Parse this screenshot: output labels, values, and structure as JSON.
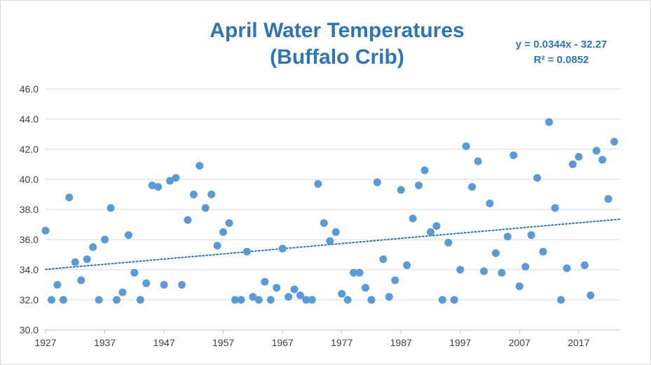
{
  "chart_data": {
    "type": "scatter",
    "title": "April Water Temperatures",
    "subtitle": "(Buffalo Crib)",
    "xlabel": "",
    "ylabel": "",
    "xlim": [
      1927,
      2024
    ],
    "ylim": [
      30.0,
      46.0
    ],
    "x_ticks": [
      1927,
      1937,
      1947,
      1957,
      1967,
      1977,
      1987,
      1997,
      2007,
      2017
    ],
    "x_tick_labels": [
      "1927",
      "1937",
      "1947",
      "1957",
      "1967",
      "1977",
      "1987",
      "1997",
      "2007",
      "2017"
    ],
    "y_ticks": [
      30,
      32,
      34,
      36,
      38,
      40,
      42,
      44,
      46
    ],
    "y_tick_labels": [
      "30.0",
      "32.0",
      "34.0",
      "36.0",
      "38.0",
      "40.0",
      "42.0",
      "44.0",
      "46.0"
    ],
    "grid": "horizontal",
    "legend": "none",
    "marker_color": "#5b9bd5",
    "trendline": {
      "type": "linear",
      "slope": 0.0344,
      "intercept": -32.27,
      "equation_label": "y = 0.0344x - 32.27",
      "r2_label": "R² = 0.0852",
      "color": "#2e75b6",
      "style": "dotted"
    },
    "series": [
      {
        "points": [
          [
            1927,
            36.6
          ],
          [
            1928,
            32.0
          ],
          [
            1929,
            33.0
          ],
          [
            1930,
            32.0
          ],
          [
            1931,
            38.8
          ],
          [
            1932,
            34.5
          ],
          [
            1933,
            33.3
          ],
          [
            1934,
            34.7
          ],
          [
            1935,
            35.5
          ],
          [
            1936,
            32.0
          ],
          [
            1937,
            36.0
          ],
          [
            1938,
            38.1
          ],
          [
            1939,
            32.0
          ],
          [
            1940,
            32.5
          ],
          [
            1941,
            36.3
          ],
          [
            1942,
            33.8
          ],
          [
            1943,
            32.0
          ],
          [
            1944,
            33.1
          ],
          [
            1945,
            39.6
          ],
          [
            1946,
            39.5
          ],
          [
            1947,
            33.0
          ],
          [
            1948,
            39.9
          ],
          [
            1949,
            40.1
          ],
          [
            1950,
            33.0
          ],
          [
            1951,
            37.3
          ],
          [
            1952,
            39.0
          ],
          [
            1953,
            40.9
          ],
          [
            1954,
            38.1
          ],
          [
            1955,
            39.0
          ],
          [
            1956,
            35.6
          ],
          [
            1957,
            36.5
          ],
          [
            1958,
            37.1
          ],
          [
            1959,
            32.0
          ],
          [
            1960,
            32.0
          ],
          [
            1961,
            35.2
          ],
          [
            1962,
            32.2
          ],
          [
            1963,
            32.0
          ],
          [
            1964,
            33.2
          ],
          [
            1965,
            32.0
          ],
          [
            1966,
            32.8
          ],
          [
            1967,
            35.4
          ],
          [
            1968,
            32.2
          ],
          [
            1969,
            32.7
          ],
          [
            1970,
            32.3
          ],
          [
            1971,
            32.0
          ],
          [
            1972,
            32.0
          ],
          [
            1973,
            39.7
          ],
          [
            1974,
            37.1
          ],
          [
            1975,
            35.9
          ],
          [
            1976,
            36.5
          ],
          [
            1977,
            32.4
          ],
          [
            1978,
            32.0
          ],
          [
            1979,
            33.8
          ],
          [
            1980,
            33.8
          ],
          [
            1981,
            32.8
          ],
          [
            1982,
            32.0
          ],
          [
            1983,
            39.8
          ],
          [
            1984,
            34.7
          ],
          [
            1985,
            32.2
          ],
          [
            1986,
            33.3
          ],
          [
            1987,
            39.3
          ],
          [
            1988,
            34.3
          ],
          [
            1989,
            37.4
          ],
          [
            1990,
            39.6
          ],
          [
            1991,
            40.6
          ],
          [
            1992,
            36.5
          ],
          [
            1993,
            36.9
          ],
          [
            1994,
            32.0
          ],
          [
            1995,
            35.8
          ],
          [
            1996,
            32.0
          ],
          [
            1997,
            34.0
          ],
          [
            1998,
            42.2
          ],
          [
            1999,
            39.5
          ],
          [
            2000,
            41.2
          ],
          [
            2001,
            33.9
          ],
          [
            2002,
            38.4
          ],
          [
            2003,
            35.1
          ],
          [
            2004,
            33.8
          ],
          [
            2005,
            36.2
          ],
          [
            2006,
            41.6
          ],
          [
            2007,
            32.9
          ],
          [
            2008,
            34.2
          ],
          [
            2009,
            36.3
          ],
          [
            2010,
            40.1
          ],
          [
            2011,
            35.2
          ],
          [
            2012,
            43.8
          ],
          [
            2013,
            38.1
          ],
          [
            2014,
            32.0
          ],
          [
            2015,
            34.1
          ],
          [
            2016,
            41.0
          ],
          [
            2017,
            41.5
          ],
          [
            2018,
            34.3
          ],
          [
            2019,
            32.3
          ],
          [
            2020,
            41.9
          ],
          [
            2021,
            41.3
          ],
          [
            2022,
            38.7
          ],
          [
            2023,
            42.5
          ]
        ]
      }
    ]
  }
}
